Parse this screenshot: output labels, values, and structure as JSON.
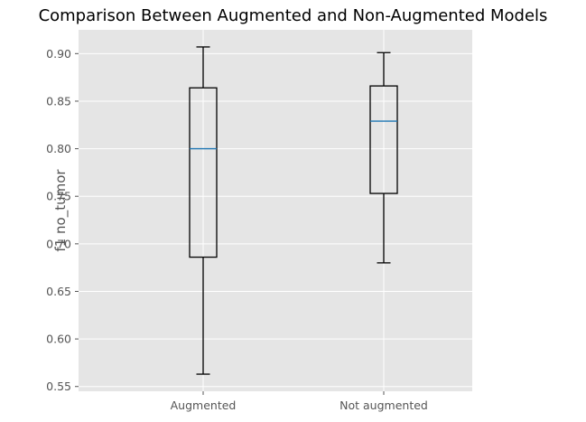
{
  "chart_data": {
    "type": "boxplot",
    "title": "Comparison Between Augmented and Non-Augmented Models",
    "xlabel": "",
    "ylabel": "f1 no_tumor",
    "ylim": [
      0.545,
      0.925
    ],
    "yticks": [
      "0.55",
      "0.60",
      "0.65",
      "0.70",
      "0.75",
      "0.80",
      "0.85",
      "0.90"
    ],
    "categories": [
      "Augmented",
      "Not augmented"
    ],
    "boxes": [
      {
        "category": "Augmented",
        "whisker_low": 0.563,
        "q1": 0.686,
        "median": 0.8,
        "q3": 0.864,
        "whisker_high": 0.907
      },
      {
        "category": "Not augmented",
        "whisker_low": 0.68,
        "q1": 0.753,
        "median": 0.829,
        "q3": 0.866,
        "whisker_high": 0.901
      }
    ],
    "grid": true,
    "style": {
      "plot_background": "#e5e5e5",
      "grid_color": "#ffffff",
      "box_color": "#000000",
      "median_color": "#1f77b4"
    }
  }
}
